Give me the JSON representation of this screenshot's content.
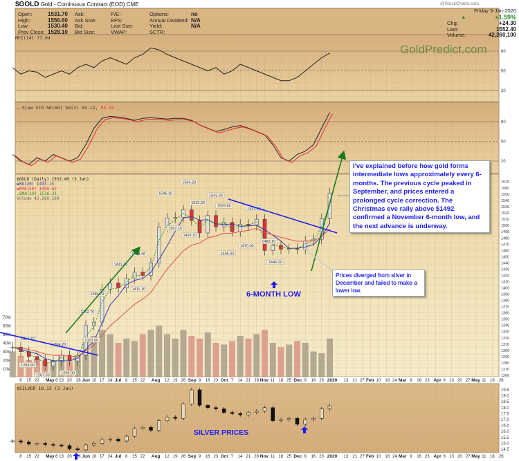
{
  "header": {
    "symbol": "$GOLD",
    "name": "Gold - Continuous Contract (EOD) CME",
    "credit": "@StockCharts.com",
    "quote": [
      [
        "Open:",
        "1531.70"
      ],
      [
        "High:",
        "1556.60"
      ],
      [
        "Low:",
        "1530.40"
      ],
      [
        "Prev Close:",
        "1528.10"
      ]
    ],
    "col2": [
      "Ask:",
      "Ask Size:",
      "Bid:",
      "Bid Size:"
    ],
    "col3": [
      "P/E:",
      "EPS:",
      "Last Size:",
      "VWAP:"
    ],
    "col4": [
      [
        "Options:",
        "no"
      ],
      [
        "Annual Dividend:",
        "N/A"
      ],
      [
        "Yield:",
        "N/A"
      ],
      [
        "SCTR:",
        ""
      ]
    ],
    "date": "Friday  3-Jan-2020",
    "pct": "+1.59%",
    "chg_label": "Chg:",
    "chg": "+24.30",
    "last_label": "Last:",
    "last": "1552.40",
    "vol_label": "Volume:",
    "volume": "42,260,100"
  },
  "watermark": "GoldPredict.com",
  "colors": {
    "up": "#2a8a2a",
    "down": "#e0303a",
    "ma20": "#3a3ab0",
    "ema50": "#e05050",
    "ema10": "#2a9a2a",
    "annot": "#1c1cf0"
  },
  "chart_data": {
    "type": "line",
    "x_start_week_label": "8 Apr 2019",
    "x_ticks": [
      [
        "8",
        0
      ],
      [
        "15",
        1
      ],
      [
        "22",
        2
      ],
      [
        "May",
        3.6
      ],
      [
        "6",
        4
      ],
      [
        "13",
        5
      ],
      [
        "20",
        6
      ],
      [
        "28",
        7.1
      ],
      [
        "Jun",
        7.8
      ],
      [
        "10",
        9
      ],
      [
        "17",
        10
      ],
      [
        "24",
        11
      ],
      [
        "Jul",
        12.1
      ],
      [
        "8",
        13
      ],
      [
        "15",
        14
      ],
      [
        "22",
        15
      ],
      [
        "Aug",
        16.6
      ],
      [
        "12",
        18
      ],
      [
        "19",
        19
      ],
      [
        "26",
        20
      ],
      [
        "Sep",
        21.1
      ],
      [
        "9",
        22
      ],
      [
        "16",
        23
      ],
      [
        "23",
        24
      ],
      [
        "Oct",
        25.1
      ],
      [
        "7",
        26
      ],
      [
        "14",
        27
      ],
      [
        "21",
        28
      ],
      [
        "28",
        29
      ],
      [
        "Nov",
        29.9
      ],
      [
        "11",
        31
      ],
      [
        "18",
        32
      ],
      [
        "25",
        33
      ],
      [
        "Dec",
        34.1
      ],
      [
        "9",
        35
      ],
      [
        "16",
        36
      ],
      [
        "23",
        37
      ],
      [
        "2020",
        38.4
      ],
      [
        "13",
        40
      ],
      [
        "21",
        41.1
      ],
      [
        "27",
        42
      ],
      [
        "Feb",
        43
      ],
      [
        "10",
        44
      ],
      [
        "18",
        45.1
      ],
      [
        "24",
        46
      ],
      [
        "Mar",
        47
      ],
      [
        "9",
        48
      ],
      [
        "16",
        49
      ],
      [
        "23",
        50
      ],
      [
        "Apr",
        51.3
      ],
      [
        "6",
        52
      ],
      [
        "13",
        53
      ],
      [
        "20",
        54
      ],
      [
        "27",
        55
      ],
      [
        "May",
        55.8
      ],
      [
        "11",
        57
      ],
      [
        "18",
        58
      ],
      [
        "26",
        59.1
      ]
    ],
    "first_week": -1,
    "mfi": {
      "label": "MFI(14) 77.04",
      "ticks": [
        80,
        50,
        20
      ],
      "values": [
        55,
        45,
        50,
        48,
        40,
        45,
        50,
        45,
        55,
        60,
        55,
        65,
        70,
        65,
        60,
        70,
        75,
        85,
        82,
        75,
        70,
        65,
        60,
        55,
        50,
        55,
        45,
        50,
        60,
        55,
        50,
        45,
        40,
        35,
        35,
        40,
        50,
        60,
        70,
        77
      ]
    },
    "sto": {
      "label": "Slow STO %K(60) %D(3) 94.12,",
      "label_d": "93.55",
      "ticks": [
        80,
        50,
        20
      ],
      "values": [
        30,
        20,
        15,
        25,
        20,
        30,
        25,
        20,
        25,
        45,
        70,
        85,
        88,
        87,
        85,
        82,
        85,
        86,
        85,
        84,
        85,
        85,
        82,
        75,
        70,
        65,
        68,
        72,
        74,
        70,
        65,
        60,
        45,
        25,
        20,
        30,
        35,
        45,
        70,
        94
      ]
    },
    "gold": {
      "label": "$GOLD (Daily) 1552.40 (3 Jan)",
      "ma20": "MA(20) 1493.15",
      "ema50": "EMA(50) 1490.62",
      "ema10": "EMA(10) 1516.21",
      "vol": "Volume 42,260,100",
      "ylim": [
        1260,
        1575
      ],
      "yticks": [
        1570,
        1560,
        1550,
        1540,
        1530,
        1520,
        1510,
        1500,
        1490,
        1480,
        1470,
        1460,
        1450,
        1440,
        1430,
        1420,
        1410,
        1400,
        1390,
        1380,
        1370,
        1360,
        1350,
        1340,
        1330,
        1320,
        1310,
        1300,
        1290,
        1280,
        1270,
        1260
      ],
      "closes": [
        1305,
        1298,
        1290,
        1285,
        1275,
        1282,
        1292,
        1283,
        1292,
        1340,
        1345,
        1398,
        1408,
        1400,
        1415,
        1425,
        1420,
        1440,
        1497,
        1512,
        1513,
        1525,
        1508,
        1488,
        1516,
        1498,
        1505,
        1490,
        1502,
        1500,
        1510,
        1460,
        1468,
        1462,
        1463,
        1462,
        1475,
        1478,
        1511,
        1552
      ],
      "volume_m": [
        30,
        25,
        20,
        22,
        18,
        20,
        25,
        18,
        25,
        45,
        48,
        55,
        50,
        40,
        45,
        42,
        50,
        55,
        60,
        50,
        45,
        55,
        48,
        45,
        52,
        40,
        38,
        42,
        48,
        45,
        50,
        55,
        40,
        35,
        38,
        42,
        40,
        30,
        28,
        45
      ],
      "vol_ticks": [
        "70M",
        "60M",
        "50M",
        "40M",
        "30M",
        "20M",
        "10M"
      ],
      "price_labels": [
        [
          "1314.70",
          -0.7,
          1318
        ],
        [
          "1284.90",
          -0.8,
          1276
        ],
        [
          "1267.30",
          2.7,
          1260
        ],
        [
          "1304.20",
          4.7,
          1309
        ],
        [
          "1269.00",
          5.8,
          1263
        ],
        [
          "1352.70",
          8.2,
          1361
        ],
        [
          "1323.60",
          8.7,
          1316
        ],
        [
          "1384.70",
          9.4,
          1390
        ],
        [
          "1411.30",
          14.5,
          1398
        ],
        [
          "1441.00",
          12.3,
          1437
        ],
        [
          "1454.40",
          14.5,
          1454
        ],
        [
          "1546.10",
          17.8,
          1551
        ],
        [
          "1564.20",
          20.7,
          1569
        ],
        [
          "1502.10",
          19,
          1495
        ],
        [
          "1532.20",
          21.8,
          1536
        ],
        [
          "1492.10",
          20.8,
          1484
        ],
        [
          "1543.30",
          24,
          1548
        ],
        [
          "1525.80",
          25,
          1531
        ],
        [
          "1465.00",
          25.4,
          1455
        ],
        [
          "1470.00",
          27.8,
          1467
        ],
        [
          "1520.90",
          28.7,
          1527
        ],
        [
          "1483.10",
          30.5,
          1474
        ],
        [
          "1446.20",
          31.3,
          1441
        ]
      ],
      "annotation": "6-MONTH LOW"
    },
    "silver": {
      "label": "$SILVER 18.15 (3 Jan)",
      "ylim": [
        14.2,
        20
      ],
      "yticks": [
        19.5,
        19.0,
        18.5,
        18.0,
        17.5,
        17.0,
        16.5,
        16.0,
        15.5,
        15.0,
        14.5
      ],
      "closes": [
        15.2,
        15.1,
        14.95,
        15.0,
        14.9,
        14.85,
        14.8,
        14.55,
        14.45,
        14.85,
        15.0,
        15.3,
        15.35,
        15.2,
        15.6,
        16.25,
        16.35,
        16.1,
        16.9,
        17.2,
        17.1,
        18.3,
        19.5,
        18.2,
        18.0,
        17.9,
        17.6,
        17.5,
        17.4,
        17.6,
        17.7,
        18.0,
        16.9,
        17.0,
        17.1,
        16.6,
        17.0,
        17.1,
        17.9,
        18.15
      ],
      "annotation": "SILVER PRICES"
    }
  },
  "notes": {
    "main": "I've explained before how gold forms intermediate lows approximately every 6-months. The previous cycle peaked in September, and prices entered a prolonged cycle correction. The Christmas eve rally above $1492 confirmed a November 6-month low, and the next advance is underway.",
    "divergence": "Prices diverged from silver in December and failed to make a lower low."
  }
}
